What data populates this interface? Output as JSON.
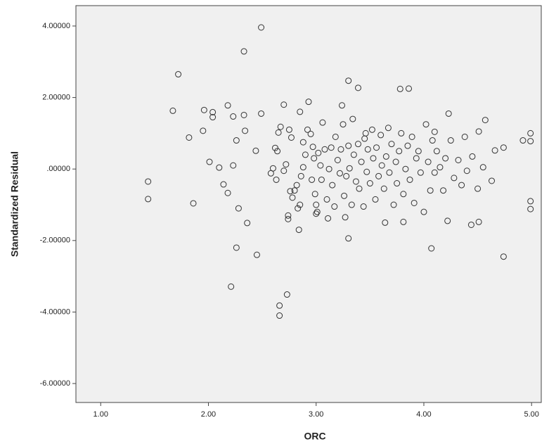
{
  "chart_data": {
    "type": "scatter",
    "xlabel": "ORC",
    "ylabel": "Standardized Residual",
    "x": [
      2.49,
      2.33,
      1.72,
      1.67,
      1.44,
      1.44,
      1.82,
      1.86,
      1.96,
      2.04,
      2.04,
      1.95,
      2.01,
      2.1,
      2.18,
      2.23,
      2.33,
      2.34,
      2.26,
      2.23,
      2.14,
      2.18,
      2.28,
      2.36,
      2.26,
      2.45,
      2.21,
      2.73,
      2.66,
      2.66,
      2.44,
      2.49,
      3.3,
      3.39,
      3.78,
      3.86,
      3.24,
      3.3,
      4.07,
      4.74,
      4.99,
      4.99,
      4.99,
      4.99,
      4.92,
      4.74,
      4.66,
      4.63,
      4.44,
      4.51,
      4.23,
      4.1,
      3.64,
      3.81,
      4.51,
      4.57,
      2.62,
      2.65,
      2.67,
      2.7,
      2.75,
      2.77,
      2.64,
      2.6,
      2.58,
      2.63,
      2.7,
      2.72,
      2.76,
      2.78,
      2.8,
      2.74,
      2.74,
      2.83,
      2.85,
      2.84,
      2.82,
      2.86,
      2.88,
      2.9,
      2.88,
      2.92,
      2.85,
      2.93,
      2.95,
      2.97,
      2.98,
      2.96,
      2.99,
      3.0,
      3.01,
      3.0,
      3.02,
      3.04,
      3.05,
      3.06,
      3.08,
      3.1,
      3.11,
      3.12,
      3.14,
      3.15,
      3.17,
      3.18,
      3.2,
      3.22,
      3.23,
      3.25,
      3.26,
      3.27,
      3.28,
      3.3,
      3.31,
      3.33,
      3.34,
      3.35,
      3.37,
      3.39,
      3.4,
      3.42,
      3.44,
      3.45,
      3.46,
      3.47,
      3.48,
      3.5,
      3.52,
      3.53,
      3.55,
      3.56,
      3.58,
      3.6,
      3.61,
      3.63,
      3.65,
      3.67,
      3.68,
      3.7,
      3.72,
      3.74,
      3.75,
      3.77,
      3.79,
      3.81,
      3.83,
      3.85,
      3.87,
      3.89,
      3.91,
      3.93,
      3.95,
      3.97,
      4.0,
      4.02,
      4.04,
      4.06,
      4.08,
      4.1,
      4.12,
      4.15,
      4.18,
      4.2,
      4.22,
      4.25,
      4.28,
      4.32,
      4.35,
      4.38,
      4.4,
      4.45,
      4.5,
      4.55
    ],
    "values": [
      3.96,
      3.29,
      2.65,
      1.63,
      -0.35,
      -0.84,
      0.88,
      -0.96,
      1.65,
      1.59,
      1.45,
      1.07,
      0.2,
      0.04,
      1.78,
      1.47,
      1.51,
      1.07,
      0.8,
      0.1,
      -0.43,
      -0.67,
      -1.1,
      -1.51,
      -2.2,
      -2.4,
      -3.29,
      -3.51,
      -3.82,
      -4.1,
      0.51,
      1.55,
      2.47,
      2.27,
      2.24,
      2.25,
      1.78,
      -1.94,
      -2.22,
      -2.45,
      1.0,
      0.78,
      -0.9,
      -1.12,
      0.8,
      0.6,
      0.52,
      -0.33,
      -1.56,
      -1.48,
      1.55,
      1.04,
      -1.5,
      -1.48,
      1.05,
      1.37,
      0.59,
      1.02,
      1.18,
      1.8,
      1.1,
      0.88,
      0.5,
      0.02,
      -0.12,
      -0.3,
      -0.05,
      0.13,
      -0.62,
      -0.8,
      -0.6,
      -1.4,
      -1.3,
      -1.1,
      -1.0,
      -1.7,
      -0.45,
      -0.2,
      0.05,
      0.4,
      0.75,
      1.1,
      1.6,
      1.88,
      0.98,
      0.62,
      0.3,
      -0.3,
      -0.7,
      -1.0,
      -1.2,
      -1.25,
      0.45,
      0.1,
      -0.3,
      1.3,
      0.55,
      -0.85,
      -1.38,
      0.0,
      0.6,
      -0.45,
      -1.05,
      0.9,
      0.25,
      -0.12,
      0.55,
      1.25,
      -0.75,
      -1.35,
      -0.2,
      0.65,
      0.02,
      -1.0,
      1.4,
      0.4,
      -0.35,
      0.7,
      -0.55,
      0.2,
      -1.05,
      0.85,
      1.0,
      -0.08,
      0.55,
      -0.4,
      1.1,
      0.3,
      -0.85,
      0.6,
      -0.2,
      0.95,
      0.1,
      -0.55,
      0.35,
      1.15,
      -0.1,
      0.7,
      -1.0,
      0.2,
      -0.4,
      0.5,
      1.0,
      -0.7,
      0.0,
      0.65,
      -0.3,
      0.9,
      -0.95,
      0.3,
      0.5,
      -0.1,
      -1.2,
      1.25,
      0.2,
      -0.6,
      0.8,
      -0.1,
      0.5,
      0.05,
      -0.6,
      0.3,
      -1.45,
      0.8,
      -0.25,
      0.25,
      -0.45,
      0.9,
      -0.05,
      0.35,
      -0.55,
      0.05
    ],
    "xlim": [
      0.77,
      5.09
    ],
    "ylim": [
      -6.53,
      4.57
    ],
    "xticks": [
      {
        "value": 1,
        "label": "1.00"
      },
      {
        "value": 2,
        "label": "2.00"
      },
      {
        "value": 3,
        "label": "3.00"
      },
      {
        "value": 4,
        "label": "4.00"
      },
      {
        "value": 5,
        "label": "5.00"
      }
    ],
    "yticks": [
      {
        "value": -6,
        "label": "-6.00000"
      },
      {
        "value": -4,
        "label": "-4.00000"
      },
      {
        "value": -2,
        "label": "-2.00000"
      },
      {
        "value": 0,
        "label": ".00000"
      },
      {
        "value": 2,
        "label": "2.00000"
      },
      {
        "value": 4,
        "label": "4.00000"
      }
    ],
    "color": "#333333",
    "grid": false
  }
}
